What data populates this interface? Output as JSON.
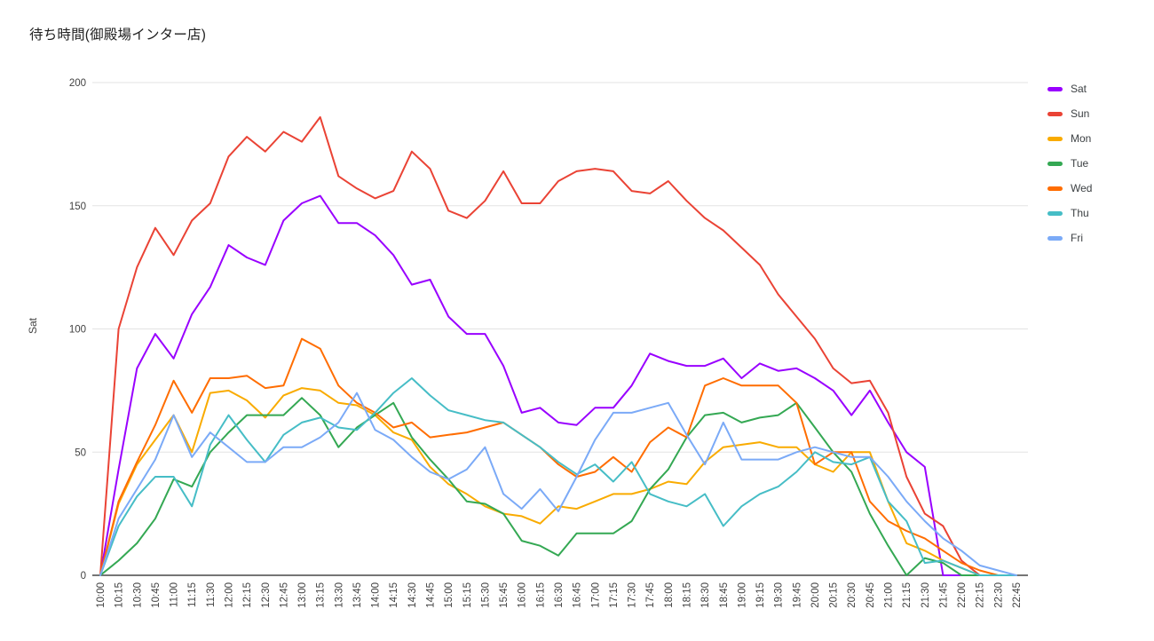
{
  "title": "待ち時間(御殿場インター店)",
  "chart_data": {
    "type": "line",
    "title": "待ち時間(御殿場インター店)",
    "xlabel": "",
    "ylabel": "Sat",
    "ylim": [
      0,
      200
    ],
    "y_ticks": [
      0,
      50,
      100,
      150,
      200
    ],
    "grid": true,
    "legend_position": "right",
    "categories": [
      "10:00",
      "10:15",
      "10:30",
      "10:45",
      "11:00",
      "11:15",
      "11:30",
      "12:00",
      "12:15",
      "12:30",
      "12:45",
      "13:00",
      "13:15",
      "13:30",
      "13:45",
      "14:00",
      "14:15",
      "14:30",
      "14:45",
      "15:00",
      "15:15",
      "15:30",
      "15:45",
      "16:00",
      "16:15",
      "16:30",
      "16:45",
      "17:00",
      "17:15",
      "17:30",
      "17:45",
      "18:00",
      "18:15",
      "18:30",
      "18:45",
      "19:00",
      "19:15",
      "19:30",
      "19:45",
      "20:00",
      "20:15",
      "20:30",
      "20:45",
      "21:00",
      "21:15",
      "21:30",
      "21:45",
      "22:00",
      "22:15",
      "22:30",
      "22:45"
    ],
    "series": [
      {
        "name": "Sat",
        "color": "#9900ff",
        "values": [
          0,
          43,
          84,
          98,
          88,
          106,
          117,
          134,
          129,
          126,
          144,
          151,
          154,
          143,
          143,
          138,
          130,
          118,
          120,
          105,
          98,
          98,
          85,
          66,
          68,
          62,
          61,
          68,
          68,
          77,
          90,
          87,
          85,
          85,
          88,
          80,
          86,
          83,
          84,
          80,
          75,
          65,
          75,
          62,
          50,
          44,
          0,
          0,
          0,
          0,
          0
        ]
      },
      {
        "name": "Sun",
        "color": "#ea4335",
        "values": [
          0,
          100,
          125,
          141,
          130,
          144,
          151,
          170,
          178,
          172,
          180,
          176,
          186,
          162,
          157,
          153,
          156,
          172,
          165,
          148,
          145,
          152,
          164,
          151,
          151,
          160,
          164,
          165,
          164,
          156,
          155,
          160,
          152,
          145,
          140,
          133,
          126,
          114,
          105,
          96,
          84,
          78,
          79,
          66,
          40,
          25,
          20,
          6,
          0,
          0,
          0
        ]
      },
      {
        "name": "Mon",
        "color": "#f9ab00",
        "values": [
          0,
          29,
          45,
          55,
          65,
          50,
          74,
          75,
          71,
          64,
          73,
          76,
          75,
          70,
          69,
          65,
          58,
          55,
          44,
          37,
          33,
          28,
          25,
          24,
          21,
          28,
          27,
          30,
          33,
          33,
          35,
          38,
          37,
          46,
          52,
          53,
          54,
          52,
          52,
          45,
          42,
          50,
          50,
          30,
          13,
          10,
          6,
          3,
          0,
          0,
          0
        ]
      },
      {
        "name": "Tue",
        "color": "#34a853",
        "values": [
          0,
          6,
          13,
          23,
          39,
          36,
          50,
          58,
          65,
          65,
          65,
          72,
          65,
          52,
          60,
          65,
          70,
          56,
          47,
          39,
          30,
          29,
          25,
          14,
          12,
          8,
          17,
          17,
          17,
          22,
          35,
          43,
          56,
          65,
          66,
          62,
          64,
          65,
          70,
          60,
          50,
          42,
          25,
          12,
          0,
          7,
          5,
          0,
          0,
          0,
          0
        ]
      },
      {
        "name": "Wed",
        "color": "#ff6d01",
        "values": [
          0,
          30,
          46,
          61,
          79,
          66,
          80,
          80,
          81,
          76,
          77,
          96,
          92,
          77,
          70,
          66,
          60,
          62,
          56,
          57,
          58,
          60,
          62,
          57,
          52,
          45,
          40,
          42,
          48,
          42,
          54,
          60,
          56,
          77,
          80,
          77,
          77,
          77,
          70,
          45,
          50,
          50,
          30,
          22,
          18,
          15,
          10,
          5,
          2,
          0,
          0
        ]
      },
      {
        "name": "Thu",
        "color": "#46bdc6",
        "values": [
          0,
          20,
          32,
          40,
          40,
          28,
          53,
          65,
          55,
          46,
          57,
          62,
          64,
          60,
          59,
          66,
          74,
          80,
          73,
          67,
          65,
          63,
          62,
          57,
          52,
          46,
          41,
          45,
          38,
          46,
          33,
          30,
          28,
          33,
          20,
          28,
          33,
          36,
          42,
          50,
          46,
          45,
          48,
          30,
          22,
          5,
          6,
          3,
          0,
          0,
          0
        ]
      },
      {
        "name": "Fri",
        "color": "#7baaf7",
        "values": [
          0,
          23,
          35,
          47,
          65,
          48,
          58,
          52,
          46,
          46,
          52,
          52,
          56,
          62,
          74,
          59,
          55,
          48,
          42,
          39,
          43,
          52,
          33,
          27,
          35,
          26,
          40,
          55,
          66,
          66,
          68,
          70,
          57,
          45,
          62,
          47,
          47,
          47,
          50,
          52,
          50,
          48,
          48,
          40,
          30,
          22,
          15,
          10,
          4,
          2,
          0
        ]
      }
    ],
    "axis_colors": {
      "gridline": "#e3e3e3",
      "baseline": "#757575",
      "tick_text": "#424242"
    }
  }
}
